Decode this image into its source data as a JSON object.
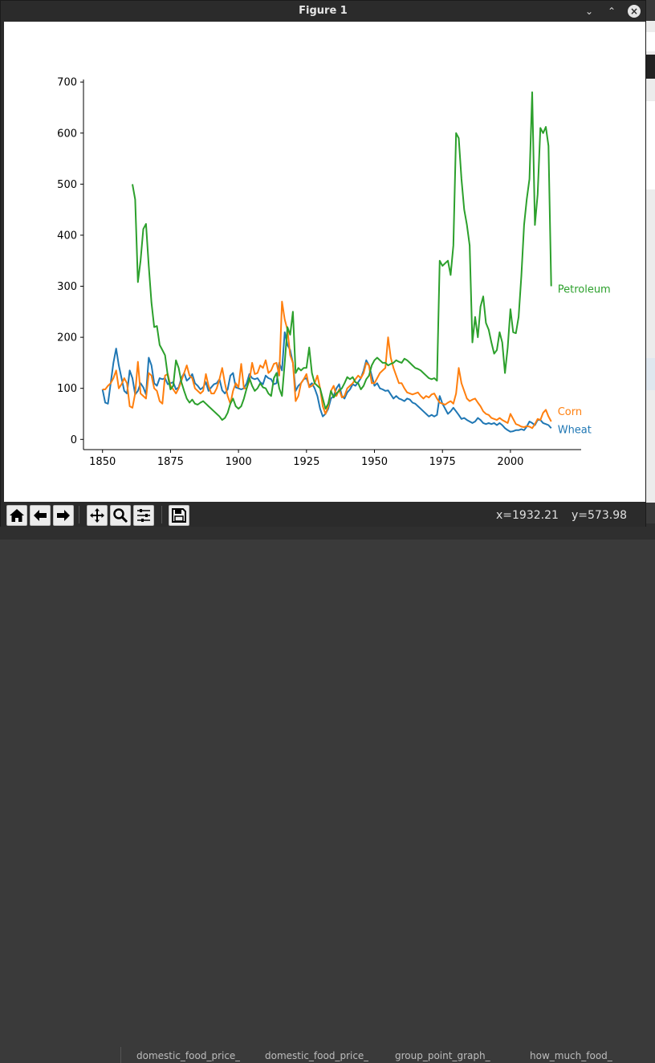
{
  "window": {
    "title": "Figure 1",
    "minimize_glyph": "⌄",
    "maximize_glyph": "⌃",
    "close_glyph": "×"
  },
  "toolbar": {
    "buttons": [
      "home-icon",
      "back-arrow-icon",
      "forward-arrow-icon",
      "pan-icon",
      "zoom-icon",
      "configure-subplots-icon",
      "save-icon"
    ],
    "x_readout": "x=1932.21",
    "y_readout": "y=573.98"
  },
  "background_tabs": [
    "domestic_food_price_",
    "domestic_food_price_",
    "group_point_graph_",
    "how_much_food_"
  ],
  "colors": {
    "wheat": "#1f77b4",
    "corn": "#ff7f0e",
    "petroleum": "#2ca02c"
  },
  "chart_data": {
    "type": "line",
    "title": "",
    "xlabel": "",
    "ylabel": "",
    "xlim": [
      1843,
      2026
    ],
    "ylim": [
      -20,
      705
    ],
    "xticks": [
      1850,
      1875,
      1900,
      1925,
      1950,
      1975,
      2000
    ],
    "yticks": [
      0,
      100,
      200,
      300,
      400,
      500,
      600,
      700
    ],
    "grid": false,
    "legend": "direct labels at line ends",
    "series": [
      {
        "name": "Wheat",
        "color": "#1f77b4",
        "x": [
          1850,
          1851,
          1852,
          1853,
          1854,
          1855,
          1856,
          1857,
          1858,
          1859,
          1860,
          1861,
          1862,
          1863,
          1864,
          1865,
          1866,
          1867,
          1868,
          1869,
          1870,
          1871,
          1872,
          1873,
          1874,
          1875,
          1876,
          1877,
          1878,
          1879,
          1880,
          1881,
          1882,
          1883,
          1884,
          1885,
          1886,
          1887,
          1888,
          1889,
          1890,
          1891,
          1892,
          1893,
          1894,
          1895,
          1896,
          1897,
          1898,
          1899,
          1900,
          1901,
          1902,
          1903,
          1904,
          1905,
          1906,
          1907,
          1908,
          1909,
          1910,
          1911,
          1912,
          1913,
          1914,
          1915,
          1916,
          1917,
          1918,
          1919,
          1920,
          1921,
          1922,
          1923,
          1924,
          1925,
          1926,
          1927,
          1928,
          1929,
          1930,
          1931,
          1932,
          1933,
          1934,
          1935,
          1936,
          1937,
          1938,
          1939,
          1940,
          1941,
          1942,
          1943,
          1944,
          1945,
          1946,
          1947,
          1948,
          1949,
          1950,
          1951,
          1952,
          1953,
          1954,
          1955,
          1956,
          1957,
          1958,
          1959,
          1960,
          1961,
          1962,
          1963,
          1964,
          1965,
          1966,
          1967,
          1968,
          1969,
          1970,
          1971,
          1972,
          1973,
          1974,
          1975,
          1976,
          1977,
          1978,
          1979,
          1980,
          1981,
          1982,
          1983,
          1984,
          1985,
          1986,
          1987,
          1988,
          1989,
          1990,
          1991,
          1992,
          1993,
          1994,
          1995,
          1996,
          1997,
          1998,
          1999,
          2000,
          2001,
          2002,
          2003,
          2004,
          2005,
          2006,
          2007,
          2008,
          2009,
          2010,
          2011,
          2012,
          2013,
          2014,
          2015
        ],
        "values": [
          98,
          72,
          70,
          110,
          150,
          178,
          145,
          120,
          95,
          90,
          135,
          120,
          88,
          95,
          110,
          102,
          88,
          160,
          145,
          110,
          105,
          120,
          118,
          120,
          108,
          110,
          112,
          98,
          102,
          120,
          130,
          115,
          120,
          128,
          110,
          105,
          98,
          102,
          112,
          95,
          102,
          108,
          110,
          118,
          96,
          90,
          98,
          125,
          130,
          102,
          100,
          98,
          100,
          110,
          128,
          120,
          118,
          120,
          112,
          108,
          125,
          120,
          118,
          108,
          110,
          150,
          135,
          210,
          185,
          175,
          150,
          95,
          105,
          110,
          118,
          120,
          105,
          110,
          100,
          85,
          60,
          45,
          50,
          60,
          80,
          85,
          100,
          108,
          85,
          80,
          92,
          98,
          108,
          105,
          112,
          120,
          135,
          155,
          145,
          125,
          105,
          110,
          100,
          98,
          95,
          96,
          88,
          80,
          85,
          80,
          78,
          75,
          80,
          78,
          72,
          70,
          65,
          60,
          55,
          50,
          45,
          48,
          45,
          48,
          85,
          70,
          60,
          50,
          55,
          62,
          55,
          48,
          40,
          42,
          38,
          35,
          32,
          35,
          42,
          38,
          32,
          30,
          32,
          30,
          32,
          28,
          32,
          28,
          22,
          18,
          15,
          16,
          18,
          18,
          20,
          18,
          25,
          35,
          32,
          28,
          38,
          38,
          32,
          30,
          28,
          22
        ]
      },
      {
        "name": "Corn",
        "color": "#ff7f0e",
        "x": [
          1850,
          1851,
          1852,
          1853,
          1854,
          1855,
          1856,
          1857,
          1858,
          1859,
          1860,
          1861,
          1862,
          1863,
          1864,
          1865,
          1866,
          1867,
          1868,
          1869,
          1870,
          1871,
          1872,
          1873,
          1874,
          1875,
          1876,
          1877,
          1878,
          1879,
          1880,
          1881,
          1882,
          1883,
          1884,
          1885,
          1886,
          1887,
          1888,
          1889,
          1890,
          1891,
          1892,
          1893,
          1894,
          1895,
          1896,
          1897,
          1898,
          1899,
          1900,
          1901,
          1902,
          1903,
          1904,
          1905,
          1906,
          1907,
          1908,
          1909,
          1910,
          1911,
          1912,
          1913,
          1914,
          1915,
          1916,
          1917,
          1918,
          1919,
          1920,
          1921,
          1922,
          1923,
          1924,
          1925,
          1926,
          1927,
          1928,
          1929,
          1930,
          1931,
          1932,
          1933,
          1934,
          1935,
          1936,
          1937,
          1938,
          1939,
          1940,
          1941,
          1942,
          1943,
          1944,
          1945,
          1946,
          1947,
          1948,
          1949,
          1950,
          1951,
          1952,
          1953,
          1954,
          1955,
          1956,
          1957,
          1958,
          1959,
          1960,
          1961,
          1962,
          1963,
          1964,
          1965,
          1966,
          1967,
          1968,
          1969,
          1970,
          1971,
          1972,
          1973,
          1974,
          1975,
          1976,
          1977,
          1978,
          1979,
          1980,
          1981,
          1982,
          1983,
          1984,
          1985,
          1986,
          1987,
          1988,
          1989,
          1990,
          1991,
          1992,
          1993,
          1994,
          1995,
          1996,
          1997,
          1998,
          1999,
          2000,
          2001,
          2002,
          2003,
          2004,
          2005,
          2006,
          2007,
          2008,
          2009,
          2010,
          2011,
          2012,
          2013,
          2014,
          2015
        ],
        "values": [
          98,
          98,
          105,
          110,
          120,
          135,
          100,
          108,
          120,
          110,
          65,
          62,
          90,
          152,
          90,
          85,
          80,
          130,
          125,
          100,
          95,
          75,
          70,
          125,
          128,
          105,
          98,
          90,
          100,
          115,
          130,
          145,
          125,
          120,
          100,
          95,
          90,
          95,
          128,
          105,
          90,
          90,
          100,
          118,
          140,
          110,
          85,
          70,
          95,
          110,
          102,
          148,
          100,
          100,
          115,
          150,
          128,
          130,
          145,
          140,
          155,
          130,
          135,
          148,
          150,
          125,
          270,
          235,
          215,
          165,
          150,
          75,
          85,
          110,
          118,
          128,
          102,
          105,
          110,
          125,
          100,
          65,
          50,
          65,
          95,
          105,
          85,
          98,
          82,
          85,
          100,
          105,
          110,
          118,
          125,
          120,
          130,
          150,
          145,
          110,
          110,
          120,
          130,
          135,
          140,
          200,
          160,
          140,
          125,
          110,
          110,
          100,
          92,
          90,
          88,
          90,
          92,
          85,
          80,
          85,
          82,
          88,
          90,
          80,
          72,
          70,
          68,
          72,
          75,
          70,
          90,
          140,
          110,
          95,
          80,
          75,
          78,
          80,
          72,
          65,
          55,
          50,
          48,
          42,
          40,
          38,
          42,
          38,
          35,
          32,
          50,
          40,
          30,
          28,
          25,
          24,
          26,
          25,
          22,
          30,
          40,
          38,
          52,
          58,
          45,
          35
        ]
      },
      {
        "name": "Petroleum",
        "color": "#2ca02c",
        "x": [
          1861,
          1862,
          1863,
          1864,
          1865,
          1866,
          1867,
          1868,
          1869,
          1870,
          1871,
          1872,
          1873,
          1874,
          1875,
          1876,
          1877,
          1878,
          1879,
          1880,
          1881,
          1882,
          1883,
          1884,
          1885,
          1886,
          1887,
          1888,
          1889,
          1890,
          1891,
          1892,
          1893,
          1894,
          1895,
          1896,
          1897,
          1898,
          1899,
          1900,
          1901,
          1902,
          1903,
          1904,
          1905,
          1906,
          1907,
          1908,
          1909,
          1910,
          1911,
          1912,
          1913,
          1914,
          1915,
          1916,
          1917,
          1918,
          1919,
          1920,
          1921,
          1922,
          1923,
          1924,
          1925,
          1926,
          1927,
          1928,
          1929,
          1930,
          1931,
          1932,
          1933,
          1934,
          1935,
          1936,
          1937,
          1938,
          1939,
          1940,
          1941,
          1942,
          1943,
          1944,
          1945,
          1946,
          1947,
          1948,
          1949,
          1950,
          1951,
          1952,
          1953,
          1954,
          1955,
          1956,
          1957,
          1958,
          1959,
          1960,
          1961,
          1962,
          1963,
          1964,
          1965,
          1966,
          1967,
          1968,
          1969,
          1970,
          1971,
          1972,
          1973,
          1974,
          1975,
          1976,
          1977,
          1978,
          1979,
          1980,
          1981,
          1982,
          1983,
          1984,
          1985,
          1986,
          1987,
          1988,
          1989,
          1990,
          1991,
          1992,
          1993,
          1994,
          1995,
          1996,
          1997,
          1998,
          1999,
          2000,
          2001,
          2002,
          2003,
          2004,
          2005,
          2006,
          2007,
          2008,
          2009,
          2010,
          2011,
          2012,
          2013,
          2014,
          2015
        ],
        "values": [
          500,
          470,
          308,
          350,
          412,
          422,
          340,
          268,
          220,
          222,
          185,
          175,
          165,
          125,
          98,
          105,
          155,
          140,
          112,
          95,
          80,
          72,
          78,
          70,
          68,
          72,
          75,
          70,
          65,
          60,
          55,
          50,
          45,
          38,
          42,
          52,
          70,
          80,
          65,
          60,
          65,
          80,
          100,
          120,
          105,
          95,
          100,
          110,
          102,
          100,
          90,
          85,
          120,
          130,
          100,
          85,
          150,
          220,
          205,
          250,
          130,
          140,
          135,
          140,
          140,
          180,
          130,
          110,
          105,
          100,
          80,
          60,
          70,
          95,
          82,
          90,
          95,
          100,
          110,
          122,
          118,
          122,
          112,
          110,
          98,
          105,
          118,
          125,
          145,
          155,
          160,
          155,
          150,
          150,
          145,
          148,
          150,
          155,
          152,
          150,
          158,
          155,
          150,
          145,
          140,
          138,
          135,
          130,
          125,
          120,
          118,
          120,
          115,
          350,
          340,
          345,
          350,
          322,
          380,
          600,
          590,
          510,
          450,
          420,
          380,
          190,
          240,
          200,
          260,
          280,
          228,
          215,
          190,
          168,
          175,
          210,
          190,
          130,
          180,
          255,
          210,
          208,
          240,
          320,
          420,
          470,
          510,
          680,
          420,
          480,
          610,
          600,
          612,
          575,
          300
        ]
      }
    ]
  }
}
